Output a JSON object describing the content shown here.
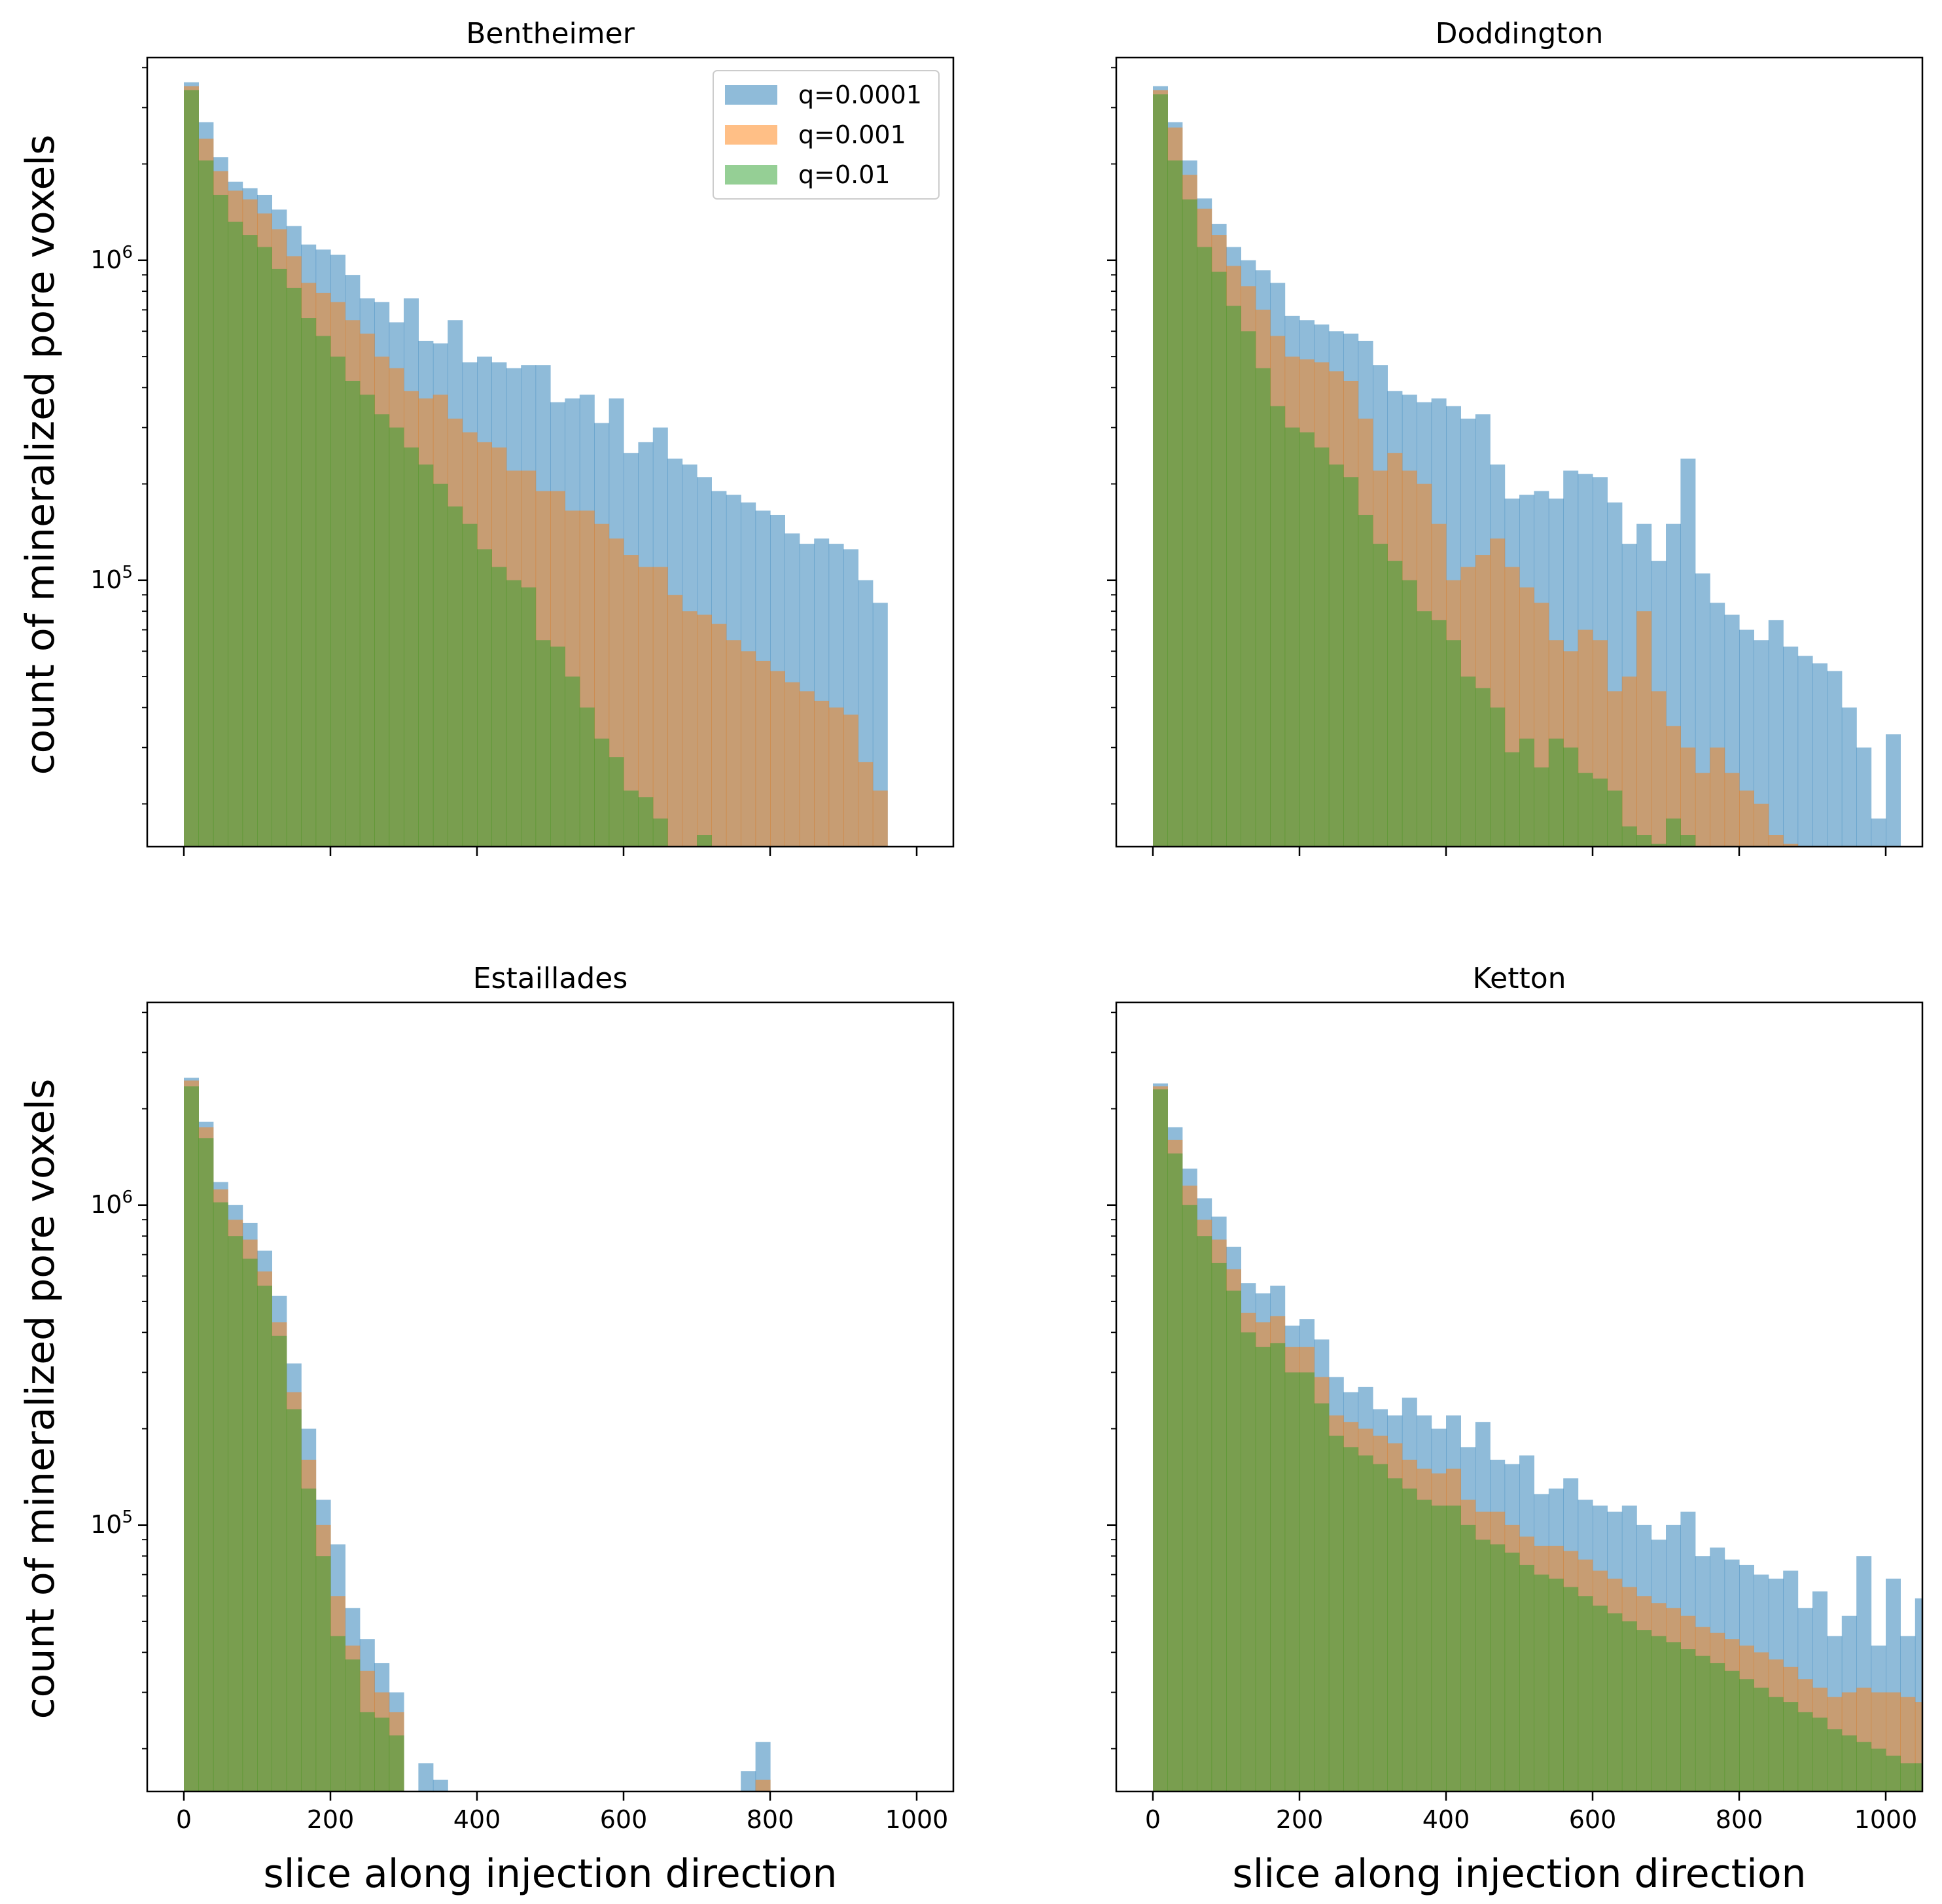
{
  "chart_data": {
    "type": "bar",
    "layout": "2x2 histogram grid, shared axes",
    "x_scale": "linear",
    "y_scale": "log",
    "xlim": [
      -50,
      1050
    ],
    "ylim": [
      14700,
      4300000
    ],
    "x_ticks": [
      0,
      200,
      400,
      600,
      800,
      1000
    ],
    "x_tick_labels": [
      "0",
      "200",
      "400",
      "600",
      "800",
      "1000"
    ],
    "y_ticks": [
      100000,
      1000000
    ],
    "y_tick_labels_base": "10",
    "y_tick_labels_exp": [
      "5",
      "6"
    ],
    "xlabel": "slice along injection direction",
    "ylabel": "count of mineralized pore voxels",
    "bin_width": 20,
    "bin_edges_start": 0,
    "legend": {
      "placement": "upper right of first subplot",
      "entries": [
        "q=0.0001",
        "q=0.001",
        "q=0.01"
      ]
    },
    "colors": {
      "q=0.0001": "#1f77b4",
      "q=0.001": "#ff7f0e",
      "q=0.01": "#2ca02c"
    },
    "opacity": 0.5,
    "panels": [
      {
        "title": "Bentheimer",
        "show_xticklabels": false,
        "show_xlabel": false,
        "show_legend": true,
        "series": [
          {
            "name": "q=0.0001",
            "values": [
              3600000,
              2700000,
              2100000,
              1760000,
              1680000,
              1600000,
              1440000,
              1280000,
              1120000,
              1080000,
              1040000,
              900000,
              760000,
              740000,
              640000,
              760000,
              560000,
              550000,
              650000,
              480000,
              500000,
              480000,
              460000,
              470000,
              470000,
              360000,
              370000,
              380000,
              310000,
              370000,
              250000,
              270000,
              300000,
              240000,
              230000,
              210000,
              190000,
              185000,
              175000,
              165000,
              160000,
              140000,
              130000,
              135000,
              130000,
              125000,
              100000,
              85000
            ]
          },
          {
            "name": "q=0.001",
            "values": [
              3500000,
              2400000,
              1900000,
              1650000,
              1550000,
              1400000,
              1250000,
              1030000,
              850000,
              790000,
              740000,
              650000,
              590000,
              500000,
              460000,
              390000,
              370000,
              380000,
              320000,
              290000,
              270000,
              260000,
              220000,
              220000,
              190000,
              190000,
              165000,
              165000,
              150000,
              135000,
              120000,
              110000,
              110000,
              90000,
              80000,
              78000,
              73000,
              65000,
              60000,
              56000,
              52000,
              48000,
              45000,
              42000,
              40000,
              38000,
              27000,
              22000
            ]
          },
          {
            "name": "q=0.01",
            "values": [
              3400000,
              2050000,
              1600000,
              1320000,
              1200000,
              1100000,
              940000,
              820000,
              660000,
              580000,
              500000,
              420000,
              380000,
              330000,
              300000,
              260000,
              230000,
              200000,
              170000,
              150000,
              125000,
              110000,
              100000,
              95000,
              65000,
              62000,
              50000,
              40000,
              32000,
              28000,
              22000,
              21000,
              18000,
              14000,
              0,
              16000,
              0,
              0,
              0,
              0,
              0,
              0,
              0,
              0,
              0,
              0,
              0,
              0
            ]
          }
        ]
      },
      {
        "title": "Doddington",
        "show_xticklabels": false,
        "show_xlabel": false,
        "show_legend": false,
        "series": [
          {
            "name": "q=0.0001",
            "values": [
              3500000,
              2700000,
              2050000,
              1560000,
              1300000,
              1100000,
              1000000,
              930000,
              850000,
              670000,
              650000,
              630000,
              600000,
              590000,
              560000,
              470000,
              390000,
              380000,
              360000,
              370000,
              350000,
              320000,
              330000,
              230000,
              180000,
              185000,
              190000,
              180000,
              220000,
              215000,
              210000,
              175000,
              130000,
              150000,
              115000,
              150000,
              240000,
              105000,
              85000,
              78000,
              70000,
              65000,
              75000,
              62000,
              58000,
              55000,
              52000,
              40000,
              30000,
              18000,
              33000
            ]
          },
          {
            "name": "q=0.001",
            "values": [
              3400000,
              2600000,
              1850000,
              1450000,
              1200000,
              960000,
              830000,
              700000,
              580000,
              500000,
              490000,
              480000,
              450000,
              420000,
              320000,
              220000,
              250000,
              220000,
              200000,
              150000,
              100000,
              110000,
              120000,
              135000,
              110000,
              95000,
              85000,
              65000,
              60000,
              70000,
              65000,
              45000,
              50000,
              80000,
              45000,
              35000,
              30000,
              25000,
              30000,
              25000,
              22000,
              20000,
              16000,
              15000,
              0,
              0,
              0,
              0,
              0,
              0,
              0
            ]
          },
          {
            "name": "q=0.01",
            "values": [
              3300000,
              2050000,
              1550000,
              1100000,
              920000,
              720000,
              600000,
              460000,
              350000,
              300000,
              290000,
              260000,
              230000,
              210000,
              160000,
              130000,
              115000,
              100000,
              80000,
              75000,
              65000,
              50000,
              46000,
              40000,
              29000,
              32000,
              26000,
              32000,
              30000,
              25000,
              24000,
              22000,
              17000,
              16000,
              15000,
              18000,
              16000,
              14000,
              0,
              0,
              0,
              0,
              0,
              0,
              0,
              0,
              0,
              0,
              0,
              0,
              0
            ]
          }
        ]
      },
      {
        "title": "Estaillades",
        "show_xticklabels": true,
        "show_xlabel": true,
        "show_legend": false,
        "series": [
          {
            "name": "q=0.0001",
            "values": [
              2500000,
              1820000,
              1180000,
              1000000,
              880000,
              720000,
              520000,
              320000,
              200000,
              120000,
              87000,
              55000,
              44000,
              37000,
              30000,
              0,
              18000,
              16000,
              0,
              0,
              0,
              0,
              0,
              0,
              0,
              0,
              0,
              0,
              0,
              0,
              0,
              0,
              0,
              0,
              0,
              0,
              0,
              0,
              17000,
              21000
            ]
          },
          {
            "name": "q=0.001",
            "values": [
              2450000,
              1750000,
              1120000,
              900000,
              780000,
              620000,
              430000,
              260000,
              160000,
              100000,
              60000,
              42000,
              35000,
              30000,
              26000,
              0,
              0,
              0,
              0,
              0,
              0,
              0,
              0,
              0,
              0,
              0,
              0,
              0,
              0,
              0,
              0,
              0,
              0,
              0,
              0,
              0,
              0,
              0,
              0,
              16000
            ]
          },
          {
            "name": "q=0.01",
            "values": [
              2350000,
              1620000,
              1020000,
              800000,
              680000,
              560000,
              390000,
              230000,
              130000,
              80000,
              45000,
              38000,
              26000,
              25000,
              22000,
              0,
              0,
              0,
              0,
              0,
              0,
              0,
              0,
              0,
              0,
              0,
              0,
              0,
              0,
              0,
              0,
              0,
              0,
              0,
              0,
              0,
              0,
              0,
              0,
              0
            ]
          }
        ]
      },
      {
        "title": "Ketton",
        "show_xticklabels": true,
        "show_xlabel": true,
        "show_legend": false,
        "series": [
          {
            "name": "q=0.0001",
            "values": [
              2400000,
              1750000,
              1300000,
              1050000,
              920000,
              740000,
              570000,
              530000,
              560000,
              420000,
              440000,
              380000,
              290000,
              260000,
              270000,
              230000,
              220000,
              250000,
              220000,
              200000,
              220000,
              175000,
              210000,
              160000,
              155000,
              165000,
              125000,
              130000,
              140000,
              120000,
              115000,
              110000,
              115000,
              100000,
              90000,
              100000,
              110000,
              80000,
              85000,
              78000,
              75000,
              70000,
              68000,
              72000,
              55000,
              62000,
              45000,
              52000,
              80000,
              42000,
              68000,
              45000,
              59000,
              62000,
              55000,
              50000
            ]
          },
          {
            "name": "q=0.001",
            "values": [
              2350000,
              1600000,
              1150000,
              900000,
              780000,
              630000,
              460000,
              430000,
              450000,
              360000,
              360000,
              290000,
              220000,
              210000,
              200000,
              190000,
              180000,
              160000,
              150000,
              145000,
              150000,
              120000,
              110000,
              110000,
              100000,
              92000,
              86000,
              86000,
              83000,
              78000,
              72000,
              68000,
              64000,
              60000,
              57000,
              55000,
              52000,
              48000,
              46000,
              44000,
              42000,
              40000,
              38000,
              36000,
              33000,
              31000,
              29000,
              30000,
              31000,
              30000,
              30000,
              29000,
              28000,
              28000,
              27000,
              26000
            ]
          },
          {
            "name": "q=0.01",
            "values": [
              2300000,
              1450000,
              1000000,
              800000,
              660000,
              540000,
              400000,
              360000,
              370000,
              300000,
              300000,
              240000,
              190000,
              175000,
              165000,
              155000,
              140000,
              130000,
              120000,
              115000,
              115000,
              100000,
              90000,
              87000,
              82000,
              75000,
              70000,
              68000,
              64000,
              60000,
              56000,
              53000,
              50000,
              47000,
              45000,
              43000,
              41000,
              39000,
              37000,
              35000,
              33000,
              31000,
              29000,
              28000,
              26000,
              25000,
              23000,
              22000,
              21000,
              20000,
              19000,
              18000,
              18000,
              17000,
              17000,
              16000
            ]
          }
        ]
      }
    ]
  }
}
